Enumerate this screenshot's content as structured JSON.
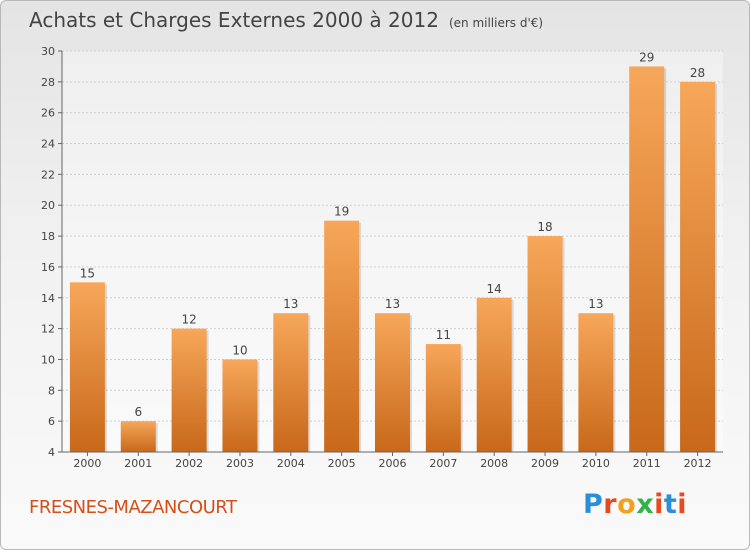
{
  "header": {
    "title": "Achats et Charges Externes 2000 à 2012",
    "subtitle": "(en milliers d'€)"
  },
  "footer": {
    "commune": "FRESNES-MAZANCOURT",
    "logo_letters": [
      "P",
      "r",
      "o",
      "x",
      "i",
      "t",
      "i"
    ],
    "logo_colors": [
      "#2a8fd6",
      "#e64a1f",
      "#f2a020",
      "#2fb34a",
      "#e64a1f",
      "#2a8fd6",
      "#e64a1f"
    ]
  },
  "chart_data": {
    "type": "bar",
    "title": "Achats et Charges Externes 2000 à 2012",
    "subtitle": "(en milliers d'€)",
    "categories": [
      "2000",
      "2001",
      "2002",
      "2003",
      "2004",
      "2005",
      "2006",
      "2007",
      "2008",
      "2009",
      "2010",
      "2011",
      "2012"
    ],
    "values": [
      15,
      6,
      12,
      10,
      13,
      19,
      13,
      11,
      14,
      18,
      13,
      29,
      28
    ],
    "ylim": [
      4,
      30
    ],
    "yticks": [
      4,
      6,
      8,
      10,
      12,
      14,
      16,
      18,
      20,
      22,
      24,
      26,
      28,
      30
    ],
    "grid": true,
    "legend": "none",
    "bar_color_top": "#f7a75a",
    "bar_color_bottom": "#c8681a"
  }
}
